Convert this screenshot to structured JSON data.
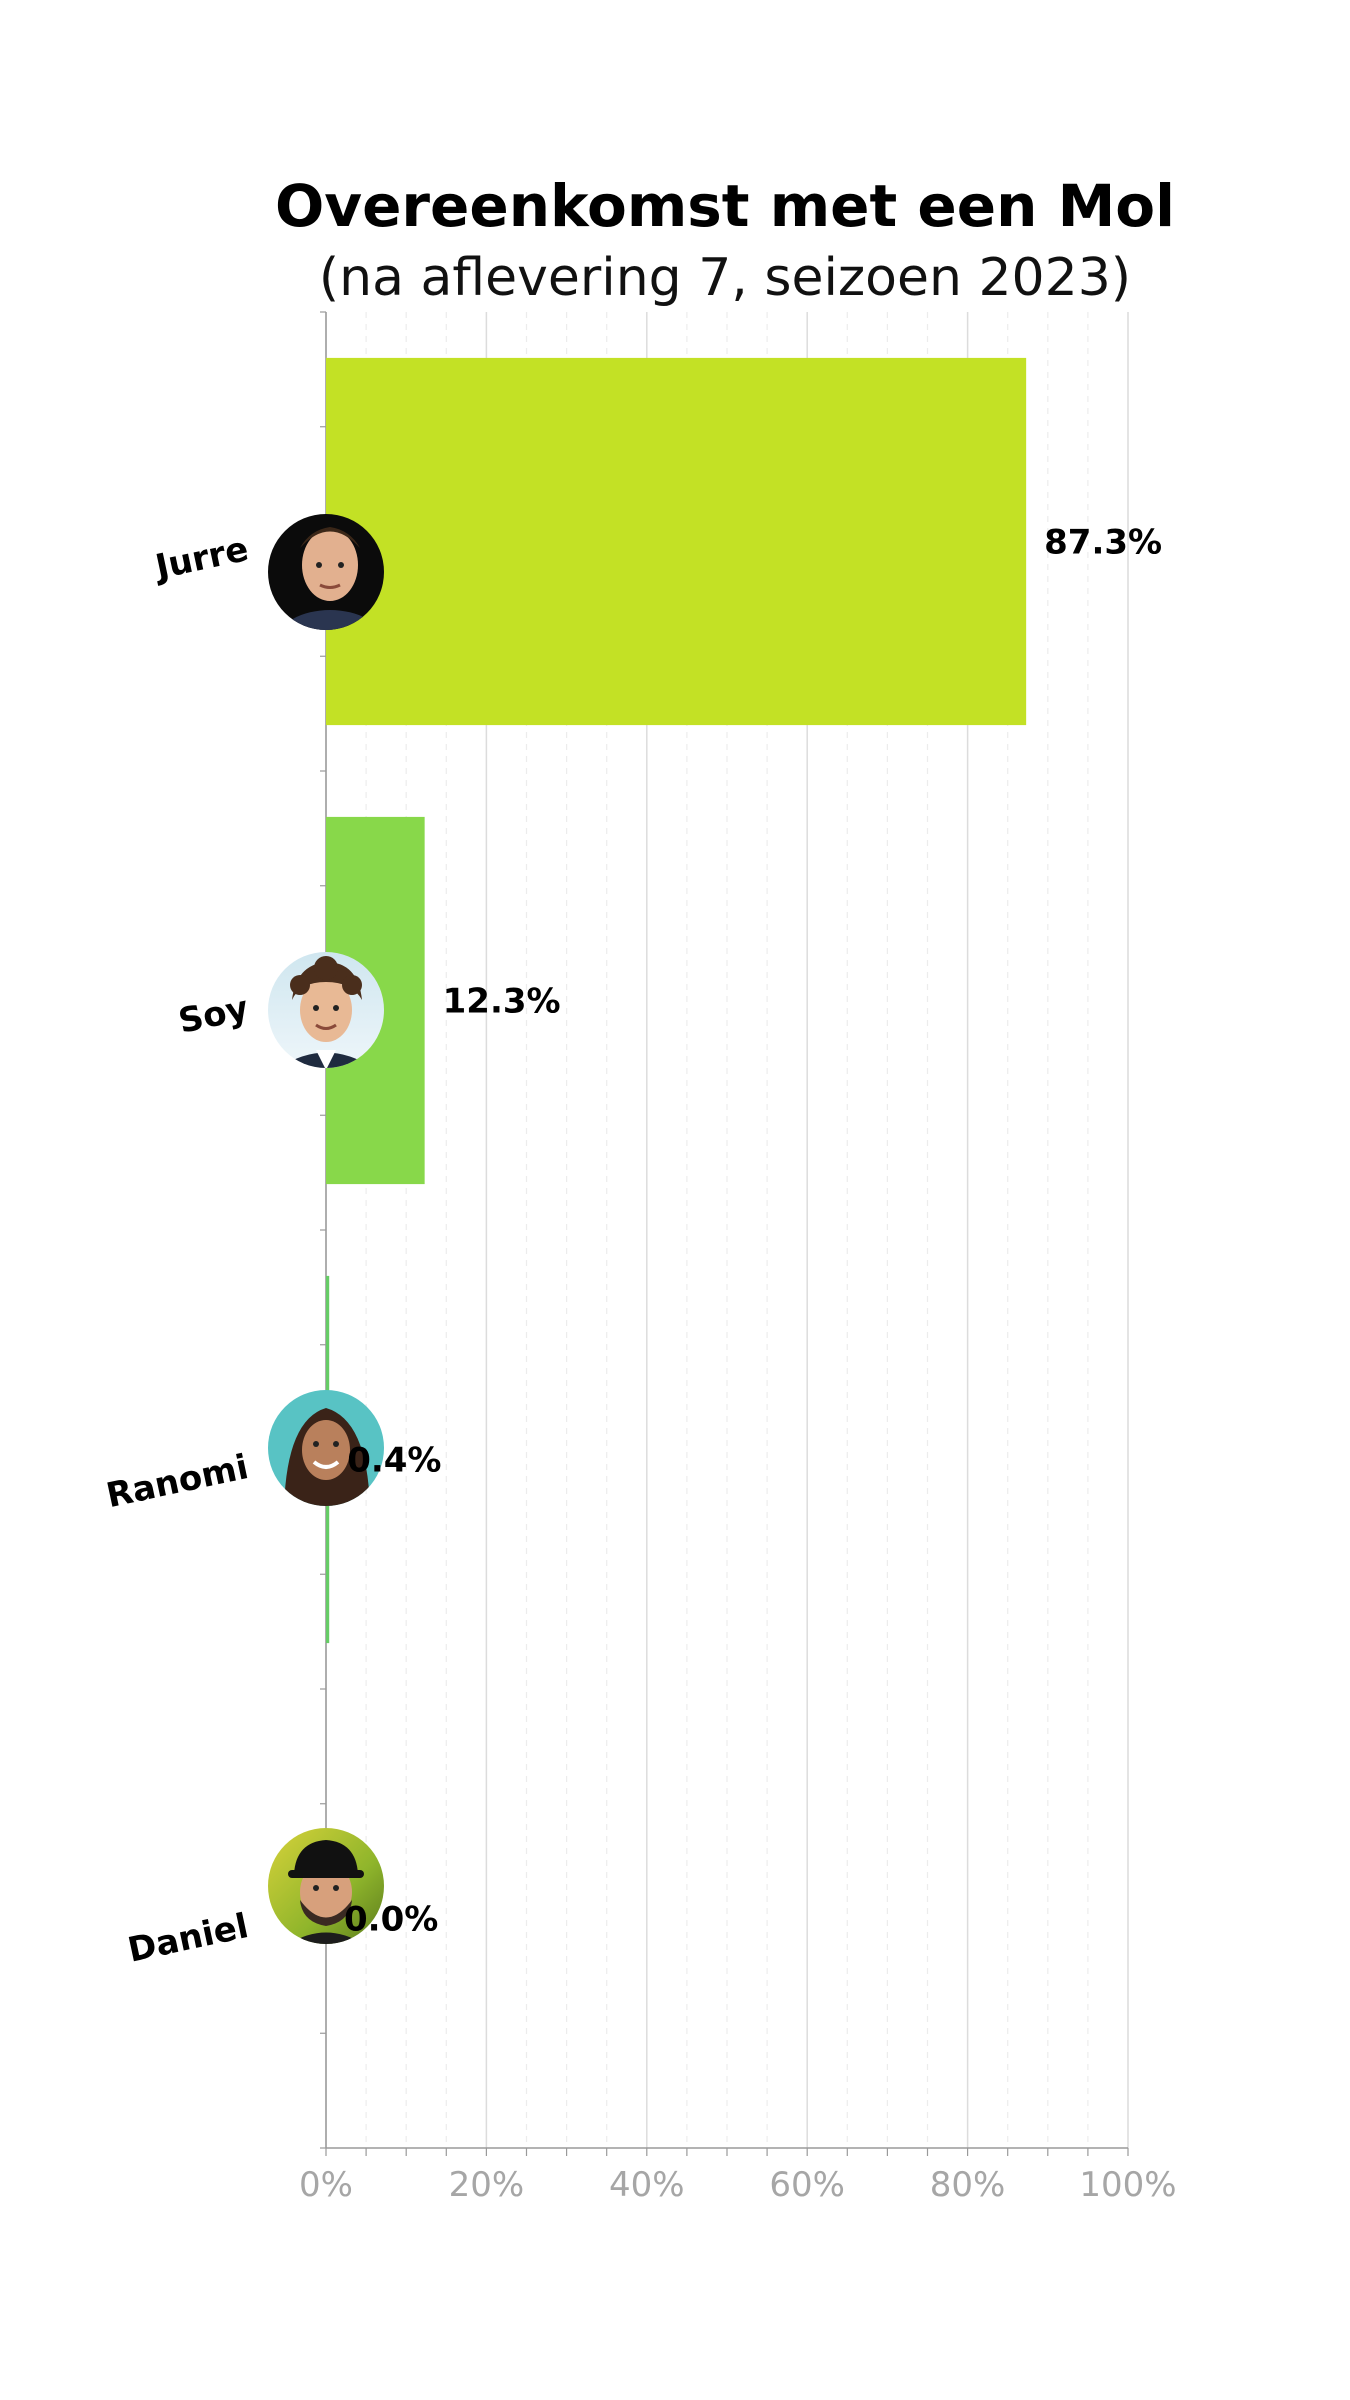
{
  "chart_data": {
    "type": "bar",
    "orientation": "horizontal",
    "title": "Overeenkomst met een Mol",
    "subtitle": "(na aflevering 7, seizoen 2023)",
    "categories": [
      "Jurre",
      "Soy",
      "Ranomi",
      "Daniel"
    ],
    "values": [
      87.3,
      12.3,
      0.4,
      0.0
    ],
    "value_labels": [
      "87.3%",
      "12.3%",
      "0.4%",
      "0.0%"
    ],
    "colors": [
      "#c3e125",
      "#88d84a",
      "#66cc66",
      "#55bb77"
    ],
    "xlim": [
      0,
      100
    ],
    "xticks": [
      0,
      20,
      40,
      60,
      80,
      100
    ],
    "xtick_labels": [
      "0%",
      "20%",
      "40%",
      "60%",
      "80%",
      "100%"
    ],
    "grid": true,
    "xlabel": "",
    "ylabel": "",
    "avatar_icons": [
      "jurre-avatar-icon",
      "soy-avatar-icon",
      "ranomi-avatar-icon",
      "daniel-avatar-icon"
    ]
  }
}
